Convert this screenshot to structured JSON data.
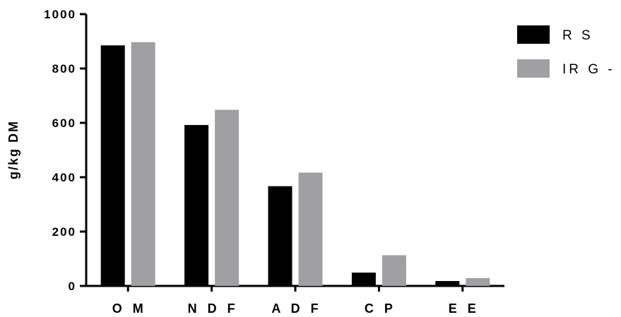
{
  "chart_data": {
    "type": "bar",
    "categories": [
      "O M",
      "N D F",
      "A D F",
      "C P",
      "E E"
    ],
    "series": [
      {
        "name": "R S",
        "values": [
          885,
          592,
          367,
          49,
          18
        ],
        "color": "#000000"
      },
      {
        "name": "IR G - s",
        "values": [
          897,
          648,
          417,
          113,
          29
        ],
        "color": "#a0a0a3"
      }
    ],
    "ylabel": "g/kg DM",
    "xlabel": "",
    "ylim": [
      0,
      1000
    ],
    "yticks": [
      0,
      200,
      400,
      600,
      800,
      1000
    ],
    "grid": false,
    "legend": "top-right"
  }
}
